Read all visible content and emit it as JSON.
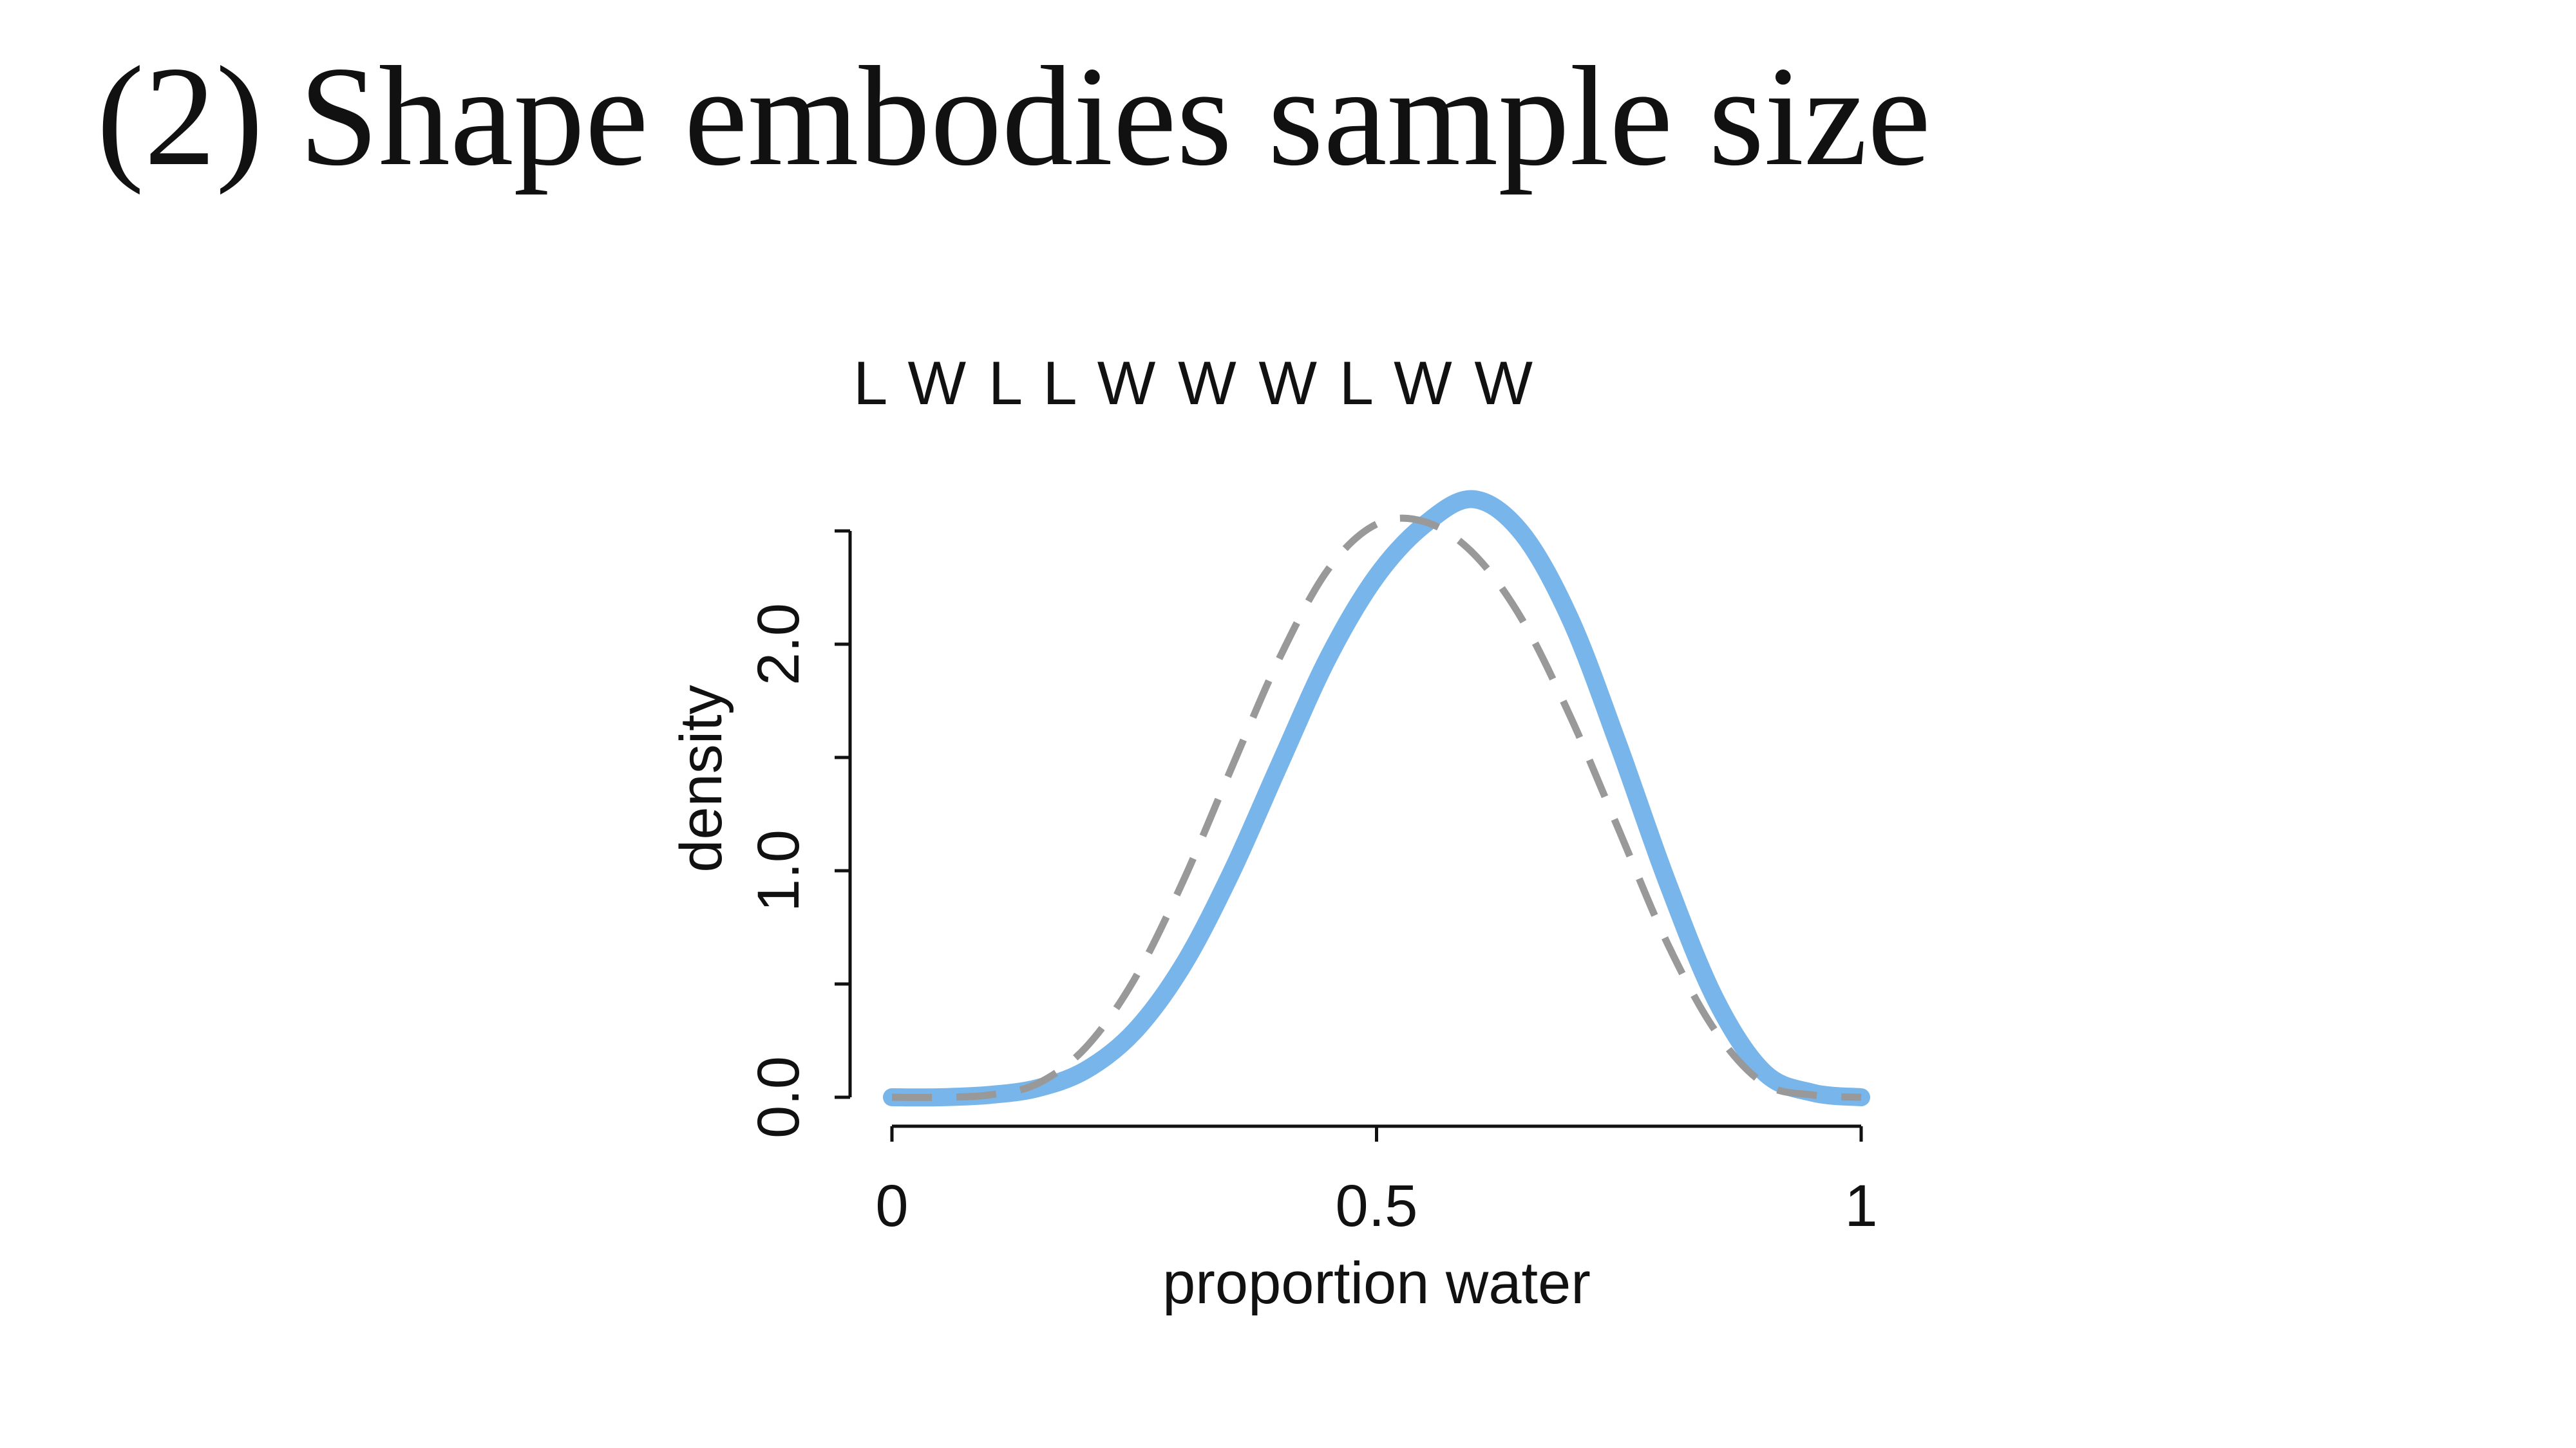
{
  "slide": {
    "title": "(2) Shape embodies sample size"
  },
  "chart_data": {
    "type": "line",
    "title": "L W L L W W W L W W",
    "xlabel": "proportion water",
    "ylabel": "density",
    "xlim": [
      0,
      1
    ],
    "ylim": [
      0,
      2.5
    ],
    "x_ticks": [
      0,
      0.5,
      1
    ],
    "x_tick_labels": [
      "0",
      "0.5",
      "1"
    ],
    "y_ticks": [
      0,
      0.5,
      1.0,
      1.5,
      2.0,
      2.5
    ],
    "y_tick_labels": [
      "0.0",
      "",
      "1.0",
      "",
      "2.0",
      ""
    ],
    "grid": false,
    "series": [
      {
        "style": "solid",
        "color": "#77b5ea",
        "x": [
          0,
          0.05,
          0.1,
          0.15,
          0.2,
          0.25,
          0.3,
          0.35,
          0.4,
          0.45,
          0.5,
          0.55,
          0.6,
          0.65,
          0.7,
          0.75,
          0.8,
          0.85,
          0.9,
          0.95,
          1
        ],
        "y": [
          0,
          0.0,
          0.01,
          0.04,
          0.12,
          0.29,
          0.58,
          0.99,
          1.47,
          1.94,
          2.3,
          2.53,
          2.64,
          2.49,
          2.11,
          1.55,
          0.95,
          0.43,
          0.11,
          0.02,
          0
        ]
      },
      {
        "style": "dashed",
        "color": "#999999",
        "x": [
          0,
          0.05,
          0.1,
          0.15,
          0.2,
          0.25,
          0.3,
          0.35,
          0.4,
          0.45,
          0.5,
          0.55,
          0.6,
          0.65,
          0.7,
          0.75,
          0.8,
          0.85,
          0.9,
          0.95,
          1
        ],
        "y": [
          0,
          0.0,
          0.01,
          0.06,
          0.22,
          0.52,
          0.95,
          1.45,
          1.94,
          2.33,
          2.53,
          2.54,
          2.4,
          2.11,
          1.68,
          1.18,
          0.68,
          0.29,
          0.06,
          0.01,
          0
        ]
      }
    ]
  }
}
